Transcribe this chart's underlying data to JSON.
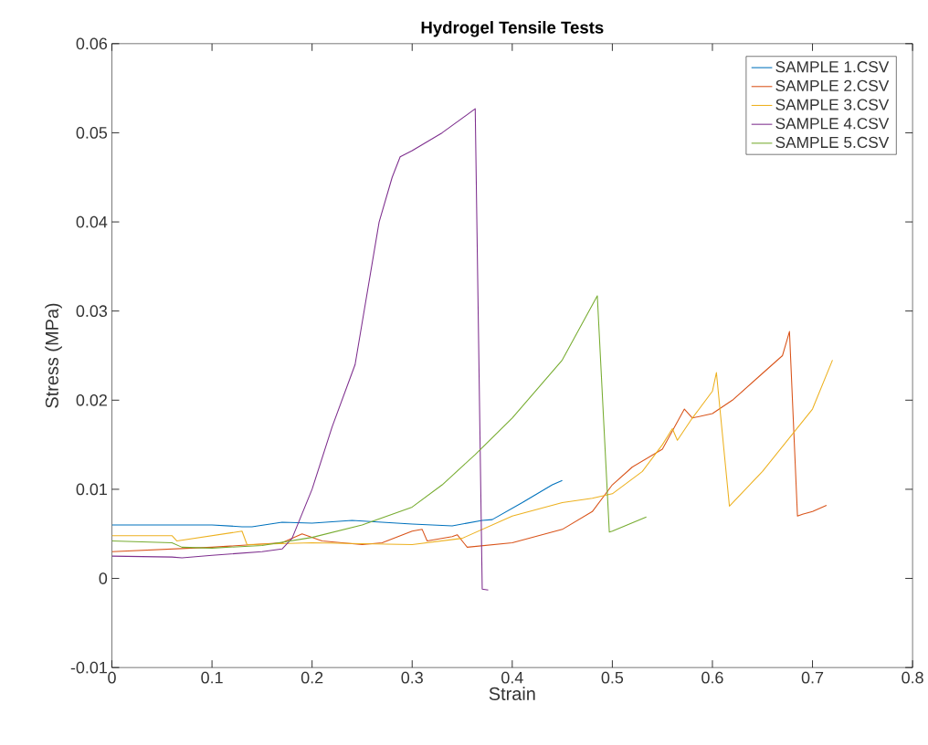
{
  "chart_data": {
    "type": "line",
    "title": "Hydrogel Tensile Tests",
    "xlabel": "Strain",
    "ylabel": "Stress (MPa)",
    "xlim": [
      0,
      0.8
    ],
    "xticks": [
      0,
      0.1,
      0.2,
      0.3,
      0.4,
      0.5,
      0.6,
      0.7,
      0.8
    ],
    "ylim": [
      -0.01,
      0.06
    ],
    "yticks": [
      -0.01,
      0,
      0.01,
      0.02,
      0.03,
      0.04,
      0.05,
      0.06
    ],
    "grid": false,
    "legend": "top right",
    "marker": "none",
    "line_style": "solid",
    "series": [
      {
        "name": "SAMPLE 1.CSV",
        "color": "#0072bd",
        "x": [
          0,
          0.06,
          0.1,
          0.13,
          0.14,
          0.17,
          0.2,
          0.24,
          0.27,
          0.3,
          0.34,
          0.37,
          0.38,
          0.41,
          0.44,
          0.45
        ],
        "values": [
          0.006,
          0.006,
          0.006,
          0.0058,
          0.0058,
          0.0063,
          0.0062,
          0.0065,
          0.0063,
          0.0061,
          0.0059,
          0.0065,
          0.0066,
          0.0085,
          0.0105,
          0.011
        ]
      },
      {
        "name": "SAMPLE 2.CSV",
        "color": "#d95319",
        "x": [
          0,
          0.1,
          0.17,
          0.19,
          0.21,
          0.25,
          0.27,
          0.3,
          0.31,
          0.315,
          0.34,
          0.345,
          0.355,
          0.4,
          0.45,
          0.48,
          0.5,
          0.52,
          0.55,
          0.572,
          0.58,
          0.6,
          0.62,
          0.65,
          0.67,
          0.677,
          0.685,
          0.69,
          0.7,
          0.714
        ],
        "values": [
          0.003,
          0.0035,
          0.004,
          0.005,
          0.0042,
          0.0038,
          0.004,
          0.0053,
          0.0055,
          0.0042,
          0.0047,
          0.0049,
          0.0035,
          0.004,
          0.0055,
          0.0075,
          0.0105,
          0.0125,
          0.0145,
          0.019,
          0.018,
          0.0185,
          0.02,
          0.023,
          0.025,
          0.0277,
          0.007,
          0.0072,
          0.0075,
          0.0082
        ]
      },
      {
        "name": "SAMPLE 3.CSV",
        "color": "#edb120",
        "x": [
          0,
          0.06,
          0.065,
          0.13,
          0.135,
          0.2,
          0.3,
          0.35,
          0.4,
          0.45,
          0.48,
          0.5,
          0.53,
          0.55,
          0.56,
          0.565,
          0.58,
          0.6,
          0.604,
          0.617,
          0.65,
          0.7,
          0.72
        ],
        "values": [
          0.0048,
          0.0048,
          0.0042,
          0.0053,
          0.0038,
          0.004,
          0.0038,
          0.0045,
          0.007,
          0.0085,
          0.009,
          0.0095,
          0.012,
          0.015,
          0.0168,
          0.0155,
          0.018,
          0.021,
          0.0231,
          0.0081,
          0.012,
          0.019,
          0.0245
        ]
      },
      {
        "name": "SAMPLE 4.CSV",
        "color": "#7e2f8e",
        "x": [
          0,
          0.06,
          0.07,
          0.1,
          0.15,
          0.17,
          0.18,
          0.2,
          0.22,
          0.243,
          0.267,
          0.28,
          0.288,
          0.3,
          0.33,
          0.363,
          0.37,
          0.376
        ],
        "values": [
          0.0025,
          0.0024,
          0.0023,
          0.0026,
          0.003,
          0.0033,
          0.0045,
          0.01,
          0.017,
          0.024,
          0.04,
          0.045,
          0.0473,
          0.048,
          0.05,
          0.0527,
          -0.0012,
          -0.0013
        ]
      },
      {
        "name": "SAMPLE 5.CSV",
        "color": "#77ac30",
        "x": [
          0,
          0.06,
          0.07,
          0.1,
          0.15,
          0.2,
          0.25,
          0.3,
          0.33,
          0.363,
          0.4,
          0.45,
          0.485,
          0.497,
          0.5,
          0.534
        ],
        "values": [
          0.0042,
          0.004,
          0.0035,
          0.0034,
          0.0037,
          0.0046,
          0.006,
          0.008,
          0.0105,
          0.0139,
          0.018,
          0.0245,
          0.0317,
          0.0052,
          0.0053,
          0.0069
        ]
      }
    ]
  }
}
